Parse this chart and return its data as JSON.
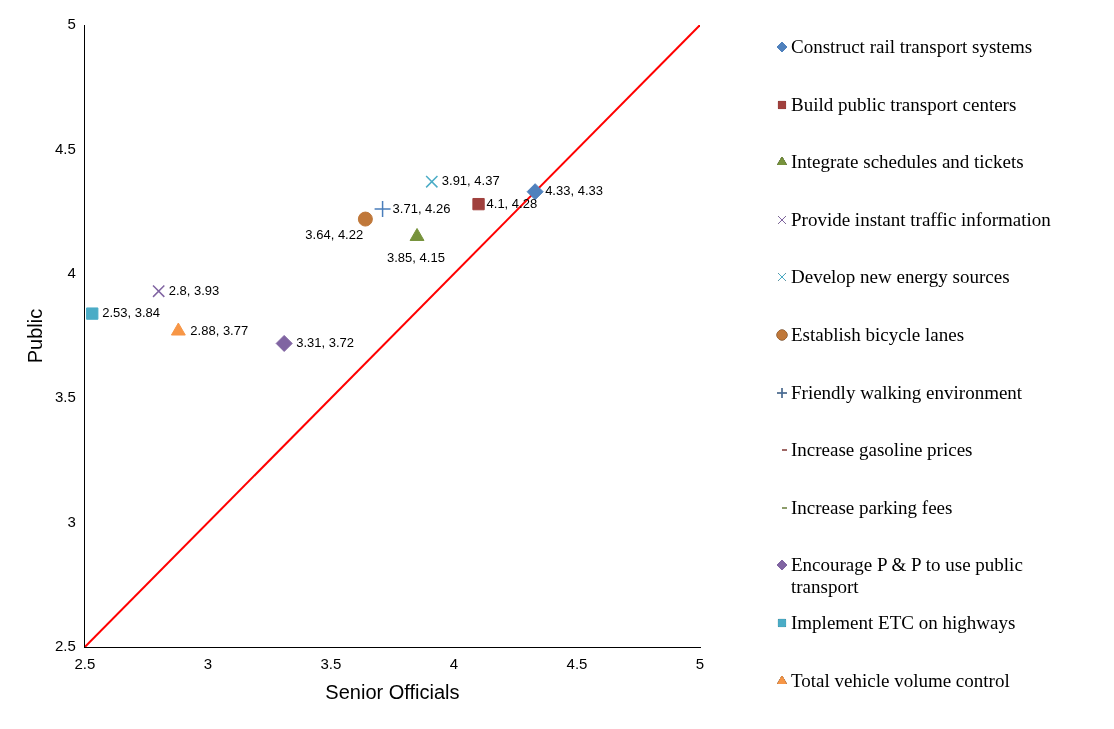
{
  "chart_data": {
    "type": "scatter",
    "xlabel": "Senior Officials",
    "ylabel": "Public",
    "xlim": [
      2.5,
      5
    ],
    "ylim": [
      2.5,
      5
    ],
    "xticks": [
      2.5,
      3,
      3.5,
      4,
      4.5,
      5
    ],
    "yticks": [
      2.5,
      3,
      3.5,
      4,
      4.5,
      5
    ],
    "grid": false,
    "legend": "right",
    "series": [
      {
        "name": "Construct rail transport systems",
        "color": "#4f81bd",
        "marker": "diamond",
        "x": [
          4.33
        ],
        "values": [
          4.33
        ],
        "value_labels": [
          "4.33, 4.33"
        ]
      },
      {
        "name": "Build public transport centers",
        "color": "#a0403d",
        "marker": "square",
        "x": [
          4.1
        ],
        "values": [
          4.28
        ],
        "value_labels": [
          "4.1, 4.28"
        ]
      },
      {
        "name": "Integrate schedules and tickets",
        "color": "#77933c",
        "marker": "triangle",
        "x": [
          3.85
        ],
        "values": [
          4.15
        ],
        "value_labels": [
          "3.85, 4.15"
        ]
      },
      {
        "name": "Provide instant traffic information",
        "color": "#8064a2",
        "marker": "cross",
        "x": [
          2.8
        ],
        "values": [
          3.93
        ],
        "value_labels": [
          "2.8, 3.93"
        ]
      },
      {
        "name": "Develop new energy sources",
        "color": "#4bacc6",
        "marker": "cross",
        "x": [
          3.91
        ],
        "values": [
          4.37
        ],
        "value_labels": [
          "3.91, 4.37"
        ]
      },
      {
        "name": "Establish bicycle lanes",
        "color": "#c0783a",
        "marker": "circle",
        "x": [
          3.64
        ],
        "values": [
          4.22
        ],
        "value_labels": [
          "3.64, 4.22"
        ]
      },
      {
        "name": "Friendly walking environment",
        "color": "#4a7ebb",
        "marker": "plus",
        "x": [
          3.71
        ],
        "values": [
          4.26
        ],
        "value_labels": [
          "3.71, 4.26"
        ]
      },
      {
        "name": "Increase gasoline prices",
        "color": "#c0504d",
        "marker": "dash"
      },
      {
        "name": "Increase parking fees",
        "color": "#9bbb59",
        "marker": "dash"
      },
      {
        "name": "Encourage P & P to use public transport",
        "color": "#8064a2",
        "marker": "diamond",
        "x": [
          3.31
        ],
        "values": [
          3.72
        ],
        "value_labels": [
          "3.31, 3.72"
        ]
      },
      {
        "name": "Implement ETC on highways",
        "color": "#4bacc6",
        "marker": "square",
        "x": [
          2.53
        ],
        "values": [
          3.84
        ],
        "value_labels": [
          "2.53, 3.84"
        ]
      },
      {
        "name": "Total vehicle volume control",
        "color": "#f79646",
        "marker": "triangle",
        "x": [
          2.88
        ],
        "values": [
          3.77
        ],
        "value_labels": [
          "2.88, 3.77"
        ]
      },
      {
        "type": "line",
        "color": "#ff0000",
        "marker": "none",
        "x": [
          2.5,
          5
        ],
        "values": [
          2.5,
          5
        ]
      }
    ]
  }
}
